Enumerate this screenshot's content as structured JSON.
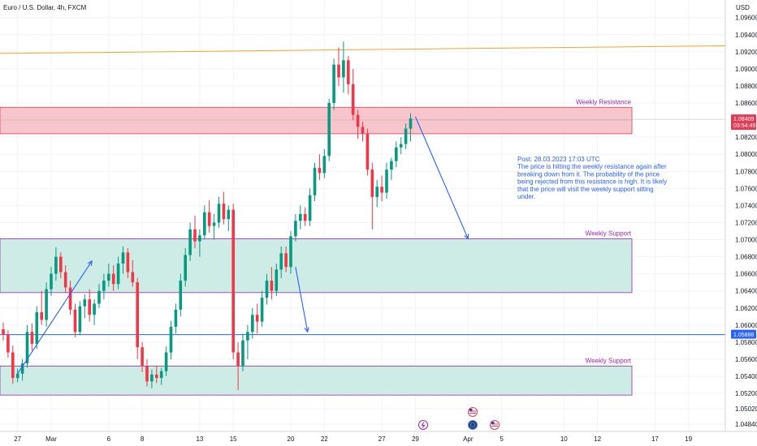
{
  "chart_data": {
    "type": "candlestick",
    "title": "Euro / U.S. Dollar, 4h, FXCM",
    "currency": "USD",
    "y_ticks": [
      "1.09600",
      "1.09400",
      "1.09200",
      "1.09000",
      "1.08800",
      "1.08600",
      "1.08200",
      "1.08000",
      "1.07800",
      "1.07600",
      "1.07400",
      "1.07200",
      "1.07000",
      "1.06800",
      "1.06600",
      "1.06400",
      "1.06200",
      "1.06000",
      "1.05800",
      "1.05600",
      "1.05400",
      "1.05200",
      "1.05020",
      "1.04840"
    ],
    "y_tick_values": [
      1.096,
      1.094,
      1.092,
      1.09,
      1.088,
      1.086,
      1.082,
      1.08,
      1.078,
      1.076,
      1.074,
      1.072,
      1.07,
      1.068,
      1.066,
      1.064,
      1.062,
      1.06,
      1.058,
      1.056,
      1.054,
      1.052,
      1.0502,
      1.0484
    ],
    "ylim": [
      1.0484,
      1.0973
    ],
    "x_ticks": [
      {
        "label": "27",
        "index": 3
      },
      {
        "label": "Mar",
        "index": 10
      },
      {
        "label": "6",
        "index": 22
      },
      {
        "label": "8",
        "index": 29
      },
      {
        "label": "13",
        "index": 41
      },
      {
        "label": "15",
        "index": 48
      },
      {
        "label": "20",
        "index": 60
      },
      {
        "label": "22",
        "index": 67
      },
      {
        "label": "27",
        "index": 79
      },
      {
        "label": "29",
        "index": 86
      },
      {
        "label": "Apr",
        "index": 97
      },
      {
        "label": "5",
        "index": 104
      },
      {
        "label": "10",
        "index": 117
      },
      {
        "label": "12",
        "index": 124
      },
      {
        "label": "17",
        "index": 136
      },
      {
        "label": "19",
        "index": 143
      }
    ],
    "candles": [
      [
        1.0595,
        1.0603,
        1.0582,
        1.0589
      ],
      [
        1.0589,
        1.0594,
        1.0562,
        1.0568
      ],
      [
        1.0568,
        1.0576,
        1.0531,
        1.0538
      ],
      [
        1.0538,
        1.0549,
        1.0533,
        1.0543
      ],
      [
        1.0543,
        1.056,
        1.0535,
        1.0555
      ],
      [
        1.0555,
        1.06,
        1.055,
        1.0592
      ],
      [
        1.0592,
        1.0602,
        1.057,
        1.0578
      ],
      [
        1.0578,
        1.0622,
        1.0572,
        1.0615
      ],
      [
        1.0615,
        1.064,
        1.06,
        1.0606
      ],
      [
        1.0606,
        1.065,
        1.0598,
        1.0642
      ],
      [
        1.0642,
        1.0668,
        1.0634,
        1.066
      ],
      [
        1.066,
        1.0691,
        1.0652,
        1.068
      ],
      [
        1.068,
        1.0685,
        1.0655,
        1.0662
      ],
      [
        1.0662,
        1.067,
        1.0638,
        1.0644
      ],
      [
        1.0644,
        1.0652,
        1.0612,
        1.0618
      ],
      [
        1.0618,
        1.0625,
        1.0586,
        1.0592
      ],
      [
        1.0592,
        1.0628,
        1.0588,
        1.0622
      ],
      [
        1.0622,
        1.0636,
        1.0608,
        1.063
      ],
      [
        1.063,
        1.0642,
        1.0604,
        1.0612
      ],
      [
        1.0612,
        1.063,
        1.06,
        1.0625
      ],
      [
        1.0625,
        1.0648,
        1.062,
        1.064
      ],
      [
        1.064,
        1.066,
        1.063,
        1.0652
      ],
      [
        1.0652,
        1.0672,
        1.0645,
        1.066
      ],
      [
        1.066,
        1.067,
        1.064,
        1.0648
      ],
      [
        1.0648,
        1.068,
        1.0642,
        1.0672
      ],
      [
        1.0672,
        1.0692,
        1.066,
        1.0685
      ],
      [
        1.0685,
        1.069,
        1.0655,
        1.0662
      ],
      [
        1.0662,
        1.0676,
        1.0645,
        1.065
      ],
      [
        1.065,
        1.0655,
        1.056,
        1.0574
      ],
      [
        1.0574,
        1.058,
        1.0545,
        1.0552
      ],
      [
        1.0552,
        1.056,
        1.0528,
        1.0534
      ],
      [
        1.0534,
        1.0548,
        1.0526,
        1.0542
      ],
      [
        1.0542,
        1.0552,
        1.0532,
        1.0538
      ],
      [
        1.0538,
        1.055,
        1.053,
        1.0546
      ],
      [
        1.0546,
        1.0575,
        1.054,
        1.0568
      ],
      [
        1.0568,
        1.0605,
        1.056,
        1.0598
      ],
      [
        1.0598,
        1.0625,
        1.059,
        1.0618
      ],
      [
        1.0618,
        1.066,
        1.061,
        1.0652
      ],
      [
        1.0652,
        1.069,
        1.0645,
        1.0682
      ],
      [
        1.0682,
        1.072,
        1.0675,
        1.0712
      ],
      [
        1.0712,
        1.0728,
        1.069,
        1.0698
      ],
      [
        1.0698,
        1.0712,
        1.068,
        1.0705
      ],
      [
        1.0705,
        1.074,
        1.07,
        1.0732
      ],
      [
        1.0732,
        1.0746,
        1.0708,
        1.0716
      ],
      [
        1.0716,
        1.073,
        1.07,
        1.072
      ],
      [
        1.072,
        1.075,
        1.0714,
        1.0742
      ],
      [
        1.0742,
        1.0756,
        1.0718,
        1.0724
      ],
      [
        1.0724,
        1.074,
        1.071,
        1.0735
      ],
      [
        1.0735,
        1.0742,
        1.056,
        1.0568
      ],
      [
        1.0568,
        1.058,
        1.0524,
        1.0552
      ],
      [
        1.0552,
        1.059,
        1.0546,
        1.0582
      ],
      [
        1.0582,
        1.06,
        1.056,
        1.0592
      ],
      [
        1.0592,
        1.062,
        1.0584,
        1.0612
      ],
      [
        1.0612,
        1.0625,
        1.059,
        1.0604
      ],
      [
        1.0604,
        1.064,
        1.0598,
        1.0632
      ],
      [
        1.0632,
        1.066,
        1.0624,
        1.0652
      ],
      [
        1.0652,
        1.0668,
        1.063,
        1.064
      ],
      [
        1.064,
        1.0672,
        1.0634,
        1.0665
      ],
      [
        1.0665,
        1.0692,
        1.0655,
        1.0684
      ],
      [
        1.0684,
        1.0692,
        1.0662,
        1.0668
      ],
      [
        1.0668,
        1.071,
        1.066,
        1.0704
      ],
      [
        1.0704,
        1.073,
        1.0698,
        1.0722
      ],
      [
        1.0722,
        1.074,
        1.0712,
        1.073
      ],
      [
        1.073,
        1.0738,
        1.0716,
        1.0722
      ],
      [
        1.0722,
        1.076,
        1.0716,
        1.0752
      ],
      [
        1.0752,
        1.079,
        1.0745,
        1.0784
      ],
      [
        1.0784,
        1.08,
        1.077,
        1.0778
      ],
      [
        1.0778,
        1.0806,
        1.0772,
        1.0798
      ],
      [
        1.0798,
        1.0865,
        1.0792,
        1.086
      ],
      [
        1.086,
        1.0912,
        1.0852,
        1.0905
      ],
      [
        1.0905,
        1.0925,
        1.088,
        1.089
      ],
      [
        1.089,
        1.0932,
        1.0872,
        1.091
      ],
      [
        1.091,
        1.0915,
        1.087,
        1.0882
      ],
      [
        1.0882,
        1.09,
        1.084,
        1.0846
      ],
      [
        1.0846,
        1.0852,
        1.0818,
        1.0832
      ],
      [
        1.0832,
        1.0838,
        1.0815,
        1.0824
      ],
      [
        1.0824,
        1.083,
        1.0775,
        1.0782
      ],
      [
        1.0782,
        1.079,
        1.0712,
        1.075
      ],
      [
        1.075,
        1.077,
        1.0738,
        1.0762
      ],
      [
        1.0762,
        1.0775,
        1.0745,
        1.0755
      ],
      [
        1.0755,
        1.079,
        1.0748,
        1.0782
      ],
      [
        1.0782,
        1.0796,
        1.077,
        1.0792
      ],
      [
        1.0792,
        1.0815,
        1.0785,
        1.0808
      ],
      [
        1.0808,
        1.082,
        1.08,
        1.0812
      ],
      [
        1.0812,
        1.0836,
        1.0806,
        1.083
      ],
      [
        1.083,
        1.0848,
        1.0815,
        1.0842
      ]
    ],
    "zones": [
      {
        "label": "Weekly Resistance",
        "top": 1.0855,
        "bottom": 1.0824,
        "fill": "#f7c6cd",
        "stroke": "#e23b53"
      },
      {
        "label": "Weekly Support",
        "top": 1.0701,
        "bottom": 1.0638,
        "fill": "#cdece5",
        "stroke": "#9c27b0"
      },
      {
        "label": "Weekly Support",
        "top": 1.0552,
        "bottom": 1.0518,
        "fill": "#cdece5",
        "stroke": "#9c27b0"
      }
    ],
    "trendline": {
      "from": 1.0918,
      "to": 1.0927,
      "color": "#f5a623"
    },
    "horizontal_line": {
      "value": 1.05888,
      "label": "1.05888",
      "color": "#2962ff"
    },
    "current_price": {
      "value": 1.08409,
      "label": "1.08409",
      "countdown": "03:54:49",
      "color": "#e23b53"
    },
    "annotation": {
      "lines": [
        "Post: 28.03.2023 17:03 UTC",
        "The price is hitting the weekly resistance again after",
        "breaking down from it. The probability of the price",
        "being rejected from this resistance is high. It is likely",
        "that the price will visit the weekly support sitting",
        "under."
      ],
      "color": "#2962ff"
    },
    "event_icons": [
      "lightning-icon",
      "us-flag-icon",
      "eu-flag-icon",
      "us-flag-icon"
    ],
    "colors": {
      "up": "#089981",
      "down": "#f23645",
      "grid": "#f0f3fa",
      "arrow": "#2962ff"
    }
  }
}
